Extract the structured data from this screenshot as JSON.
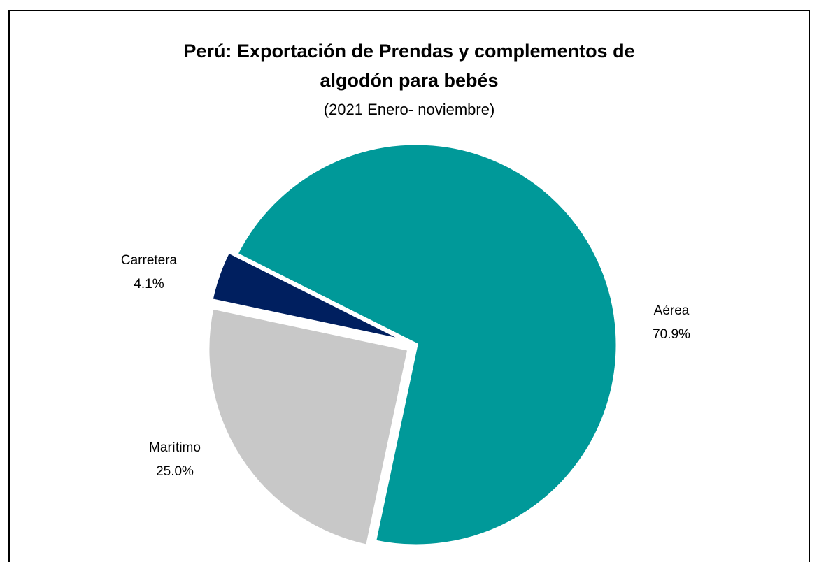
{
  "chart_data": {
    "type": "pie",
    "title": "Perú: Exportación de Prendas y complementos de algodón para bebés",
    "subtitle": "(2021 Enero- noviembre)",
    "categories": [
      "Aérea",
      "Marítimo",
      "Carretera"
    ],
    "values": [
      70.9,
      25.0,
      4.1
    ],
    "value_labels": [
      "70.9%",
      "25.0%",
      "4.1%"
    ],
    "colors": [
      "#009999",
      "#c8c8c8",
      "#001f5f"
    ]
  }
}
